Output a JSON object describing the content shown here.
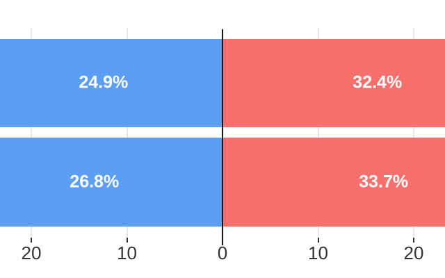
{
  "chart": {
    "colors": {
      "background": "#ffffff",
      "left_bar": "#5b9ef3",
      "right_bar": "#f7706d",
      "axis_line": "#16161d",
      "gridline": "#e6e6e6",
      "tick": "#333333",
      "tick_label": "#333333",
      "bar_label": "#ffffff"
    }
  },
  "chart_data": {
    "type": "bar",
    "subtype": "diverging-horizontal",
    "title": "",
    "grid": "vertical gridlines at axis ticks, bars clipped at plot edges",
    "legend": "none",
    "rows": [
      {
        "left": {
          "value": 24.9,
          "label": "24.9%"
        },
        "right": {
          "value": 32.4,
          "label": "32.4%"
        }
      },
      {
        "left": {
          "value": 26.8,
          "label": "26.8%"
        },
        "right": {
          "value": 33.7,
          "label": "33.7%"
        }
      }
    ],
    "x_axis": {
      "range": [
        -23.3,
        23.3
      ],
      "ticks": [
        {
          "value": -20,
          "label": "20"
        },
        {
          "value": -10,
          "label": "10"
        },
        {
          "value": 0,
          "label": "0"
        },
        {
          "value": 10,
          "label": "10"
        },
        {
          "value": 20,
          "label": "20"
        }
      ]
    }
  }
}
